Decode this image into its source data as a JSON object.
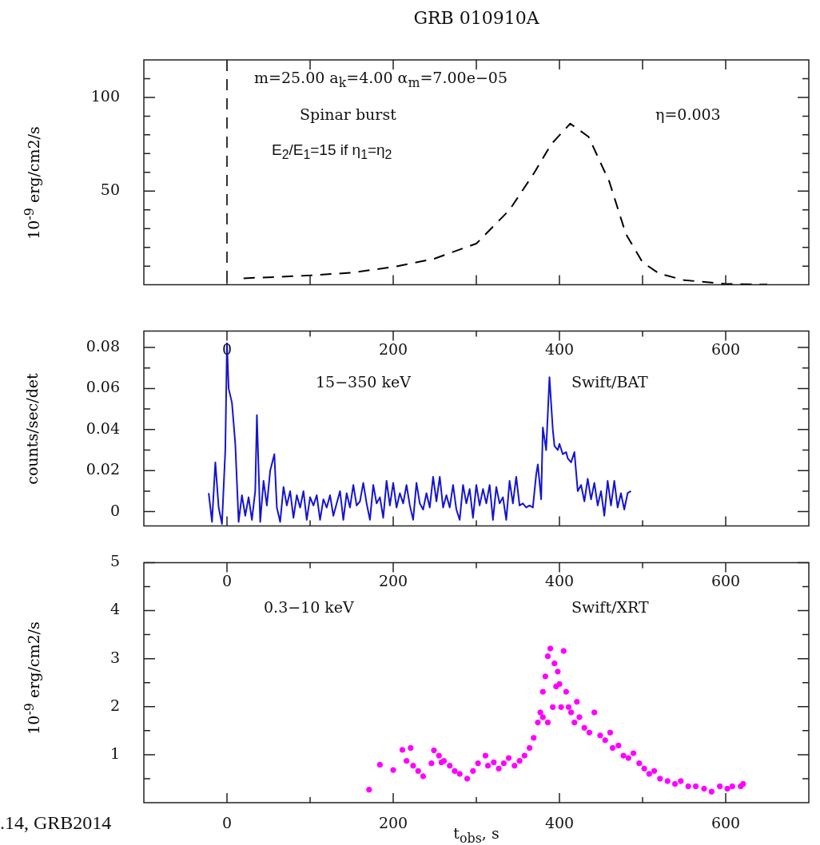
{
  "chart_data": [
    {
      "type": "line",
      "title": "GRB 010910A",
      "ylabel": "10$^{-9}$ erg/cm2/s",
      "color": "#000000",
      "line_style": "dashed",
      "marker": "none",
      "tick_labels": "y",
      "x": [
        20,
        50,
        100,
        150,
        200,
        250,
        300,
        340,
        370,
        390,
        413,
        435,
        460,
        480,
        500,
        520,
        550,
        600,
        650
      ],
      "values": [
        3.5,
        4,
        5,
        6.5,
        9.5,
        14,
        22,
        40,
        60,
        75,
        86,
        79,
        55,
        27,
        12,
        6,
        2.5,
        0.5,
        0.1
      ],
      "xlim": [
        -100,
        700
      ],
      "xticks": [
        0,
        100,
        200,
        300,
        400,
        500,
        600
      ],
      "ylim": [
        0,
        120
      ],
      "yticks": [
        {
          "value": 10,
          "label": null
        },
        {
          "value": 20,
          "label": null
        },
        {
          "value": 30,
          "label": null
        },
        {
          "value": 40,
          "label": null
        },
        50,
        {
          "value": 60,
          "label": null
        },
        {
          "value": 70,
          "label": null
        },
        {
          "value": 80,
          "label": null
        },
        {
          "value": 90,
          "label": null
        },
        100,
        {
          "value": 110,
          "label": null
        }
      ],
      "ref_lines": [
        {
          "axis": "x",
          "value": 0,
          "line_style": "dashed",
          "color": "#333333"
        }
      ],
      "annotations": [
        "m=25.00 a$_{k}$=4.00 α$_{m}$=7.00e−05",
        "Spinar burst",
        "η=0.003",
        "E$_{2}$/E$_{1}$=15  if  η$_{1}$=η$_{2}$"
      ]
    },
    {
      "type": "line",
      "ylabel": "counts/sec/det",
      "color": "#1414d2",
      "marker": "none",
      "x": [
        -22,
        -18,
        -14,
        -10,
        -6,
        -2,
        0,
        2,
        6,
        10,
        14,
        18,
        22,
        26,
        30,
        34,
        36,
        40,
        44,
        48,
        52,
        57,
        60,
        64,
        68,
        72,
        76,
        80,
        84,
        88,
        92,
        96,
        100,
        104,
        108,
        112,
        116,
        120,
        124,
        128,
        132,
        136,
        140,
        144,
        148,
        152,
        156,
        160,
        164,
        168,
        172,
        176,
        180,
        184,
        188,
        192,
        196,
        200,
        204,
        208,
        212,
        216,
        220,
        224,
        228,
        232,
        236,
        240,
        244,
        248,
        252,
        256,
        260,
        264,
        268,
        272,
        276,
        280,
        284,
        288,
        292,
        296,
        300,
        304,
        308,
        312,
        316,
        320,
        324,
        328,
        332,
        336,
        340,
        344,
        348,
        352,
        356,
        360,
        364,
        368,
        372,
        374,
        378,
        380,
        384,
        388,
        392,
        394,
        398,
        400,
        404,
        408,
        410,
        414,
        418,
        422,
        426,
        430,
        434,
        438,
        442,
        446,
        450,
        454,
        458,
        462,
        466,
        470,
        474,
        478,
        482,
        486
      ],
      "values": [
        0.009,
        -0.005,
        0.024,
        0.002,
        -0.006,
        0.03,
        0.082,
        0.06,
        0.053,
        0.033,
        -0.005,
        0.008,
        -0.002,
        0.007,
        -0.004,
        0.01,
        0.047,
        -0.005,
        0.015,
        0.003,
        0.02,
        0.028,
        0.002,
        -0.005,
        0.012,
        0.003,
        0.01,
        -0.003,
        0.008,
        0.002,
        0.01,
        -0.004,
        0.007,
        0.003,
        0.008,
        -0.004,
        0.006,
        0.002,
        0.008,
        -0.002,
        0.004,
        0.01,
        -0.004,
        0.009,
        0.002,
        0.013,
        0.003,
        0.005,
        0.014,
        0.004,
        -0.004,
        0.013,
        0.004,
        0.007,
        -0.003,
        0.015,
        0.003,
        0.014,
        0.002,
        0.009,
        0.004,
        0.013,
        0.003,
        -0.004,
        0.014,
        0.004,
        0.001,
        0.009,
        0.002,
        0.017,
        0.005,
        0.017,
        0.002,
        0.008,
        0.002,
        0.013,
        0.001,
        -0.004,
        0.013,
        0.004,
        0.011,
        -0.003,
        0.013,
        0.003,
        0.011,
        0.004,
        0.013,
        -0.004,
        0.012,
        0.004,
        0.007,
        -0.004,
        0.015,
        0.004,
        0.017,
        0.003,
        0.004,
        0.002,
        0.003,
        0.002,
        0.018,
        0.023,
        0.006,
        0.041,
        0.03,
        0.0655,
        0.04,
        0.032,
        0.03,
        0.033,
        0.028,
        0.029,
        0.026,
        0.024,
        0.029,
        0.01,
        0.013,
        0.005,
        0.016,
        0.006,
        0.014,
        0.003,
        0.01,
        -0.002,
        0.015,
        0.003,
        0.015,
        0.002,
        0.009,
        0.001,
        0.009,
        0.01
      ],
      "xlim": [
        -100,
        700
      ],
      "xticks": [
        0,
        {
          "value": 100,
          "label": null
        },
        200,
        {
          "value": 300,
          "label": null
        },
        400,
        {
          "value": 500,
          "label": null
        },
        600
      ],
      "ylim": [
        -0.007,
        0.088
      ],
      "yticks": [
        0,
        {
          "value": 0.01,
          "label": null
        },
        0.02,
        {
          "value": 0.03,
          "label": null
        },
        0.04,
        {
          "value": 0.05,
          "label": null
        },
        0.06,
        {
          "value": 0.07,
          "label": null
        },
        0.08
      ],
      "annotations": [
        "15−350 keV",
        "Swift/BAT"
      ]
    },
    {
      "type": "scatter",
      "ylabel": "10$^{-9}$ erg/cm2/s",
      "xlabel": "t$_{obs}$, s",
      "color": "#ff00ff",
      "marker": "circle",
      "x": [
        171,
        184,
        200,
        211,
        216,
        221,
        224,
        230,
        236,
        246,
        249,
        255,
        258,
        261,
        268,
        274,
        280,
        289,
        296,
        302,
        311,
        314,
        321,
        327,
        333,
        339,
        346,
        352,
        358,
        364,
        369,
        374,
        377,
        380,
        380,
        383,
        386,
        386,
        389,
        392,
        394,
        396,
        398,
        400,
        402,
        405,
        408,
        411,
        414,
        418,
        421,
        424,
        430,
        436,
        442,
        449,
        455,
        461,
        464,
        471,
        477,
        483,
        489,
        496,
        502,
        508,
        514,
        521,
        530,
        539,
        546,
        555,
        564,
        574,
        583,
        593,
        602,
        608,
        618,
        621
      ],
      "values": [
        0.27,
        0.79,
        0.68,
        1.1,
        0.87,
        1.14,
        0.77,
        0.66,
        0.55,
        0.82,
        1.09,
        0.98,
        0.84,
        0.87,
        0.77,
        0.66,
        0.6,
        0.5,
        0.66,
        0.82,
        0.98,
        0.77,
        0.84,
        0.71,
        0.82,
        0.93,
        0.77,
        0.87,
        0.98,
        1.14,
        1.35,
        1.67,
        1.88,
        2.31,
        1.78,
        2.63,
        3.05,
        1.67,
        3.21,
        1.99,
        2.9,
        2.42,
        2.73,
        2.47,
        1.99,
        3.16,
        2.31,
        1.99,
        1.88,
        1.67,
        2.1,
        1.78,
        1.56,
        1.46,
        1.88,
        1.4,
        1.3,
        1.46,
        1.14,
        1.19,
        0.98,
        0.93,
        1.03,
        0.82,
        0.71,
        0.6,
        0.66,
        0.5,
        0.45,
        0.39,
        0.45,
        0.34,
        0.34,
        0.29,
        0.23,
        0.34,
        0.29,
        0.34,
        0.34,
        0.39
      ],
      "xlim": [
        -100,
        700
      ],
      "xticks": [
        0,
        {
          "value": 100,
          "label": null
        },
        200,
        {
          "value": 300,
          "label": null
        },
        400,
        {
          "value": 500,
          "label": null
        },
        600
      ],
      "x2lim": [
        -100,
        700
      ],
      "x2ticks": [
        0,
        {
          "value": 100,
          "label": null
        },
        200,
        {
          "value": 300,
          "label": null
        },
        400,
        {
          "value": 500,
          "label": null
        },
        600
      ],
      "ylim": [
        0,
        5
      ],
      "yticks": [
        {
          "value": 0.5,
          "label": null
        },
        1,
        {
          "value": 1.5,
          "label": null
        },
        2,
        {
          "value": 2.5,
          "label": null
        },
        3,
        {
          "value": 3.5,
          "label": null
        },
        4,
        {
          "value": 4.5,
          "label": null
        },
        5
      ],
      "annotations": [
        "0.3−10 keV",
        "Swift/XRT",
        ".14, GRB2014"
      ]
    }
  ]
}
